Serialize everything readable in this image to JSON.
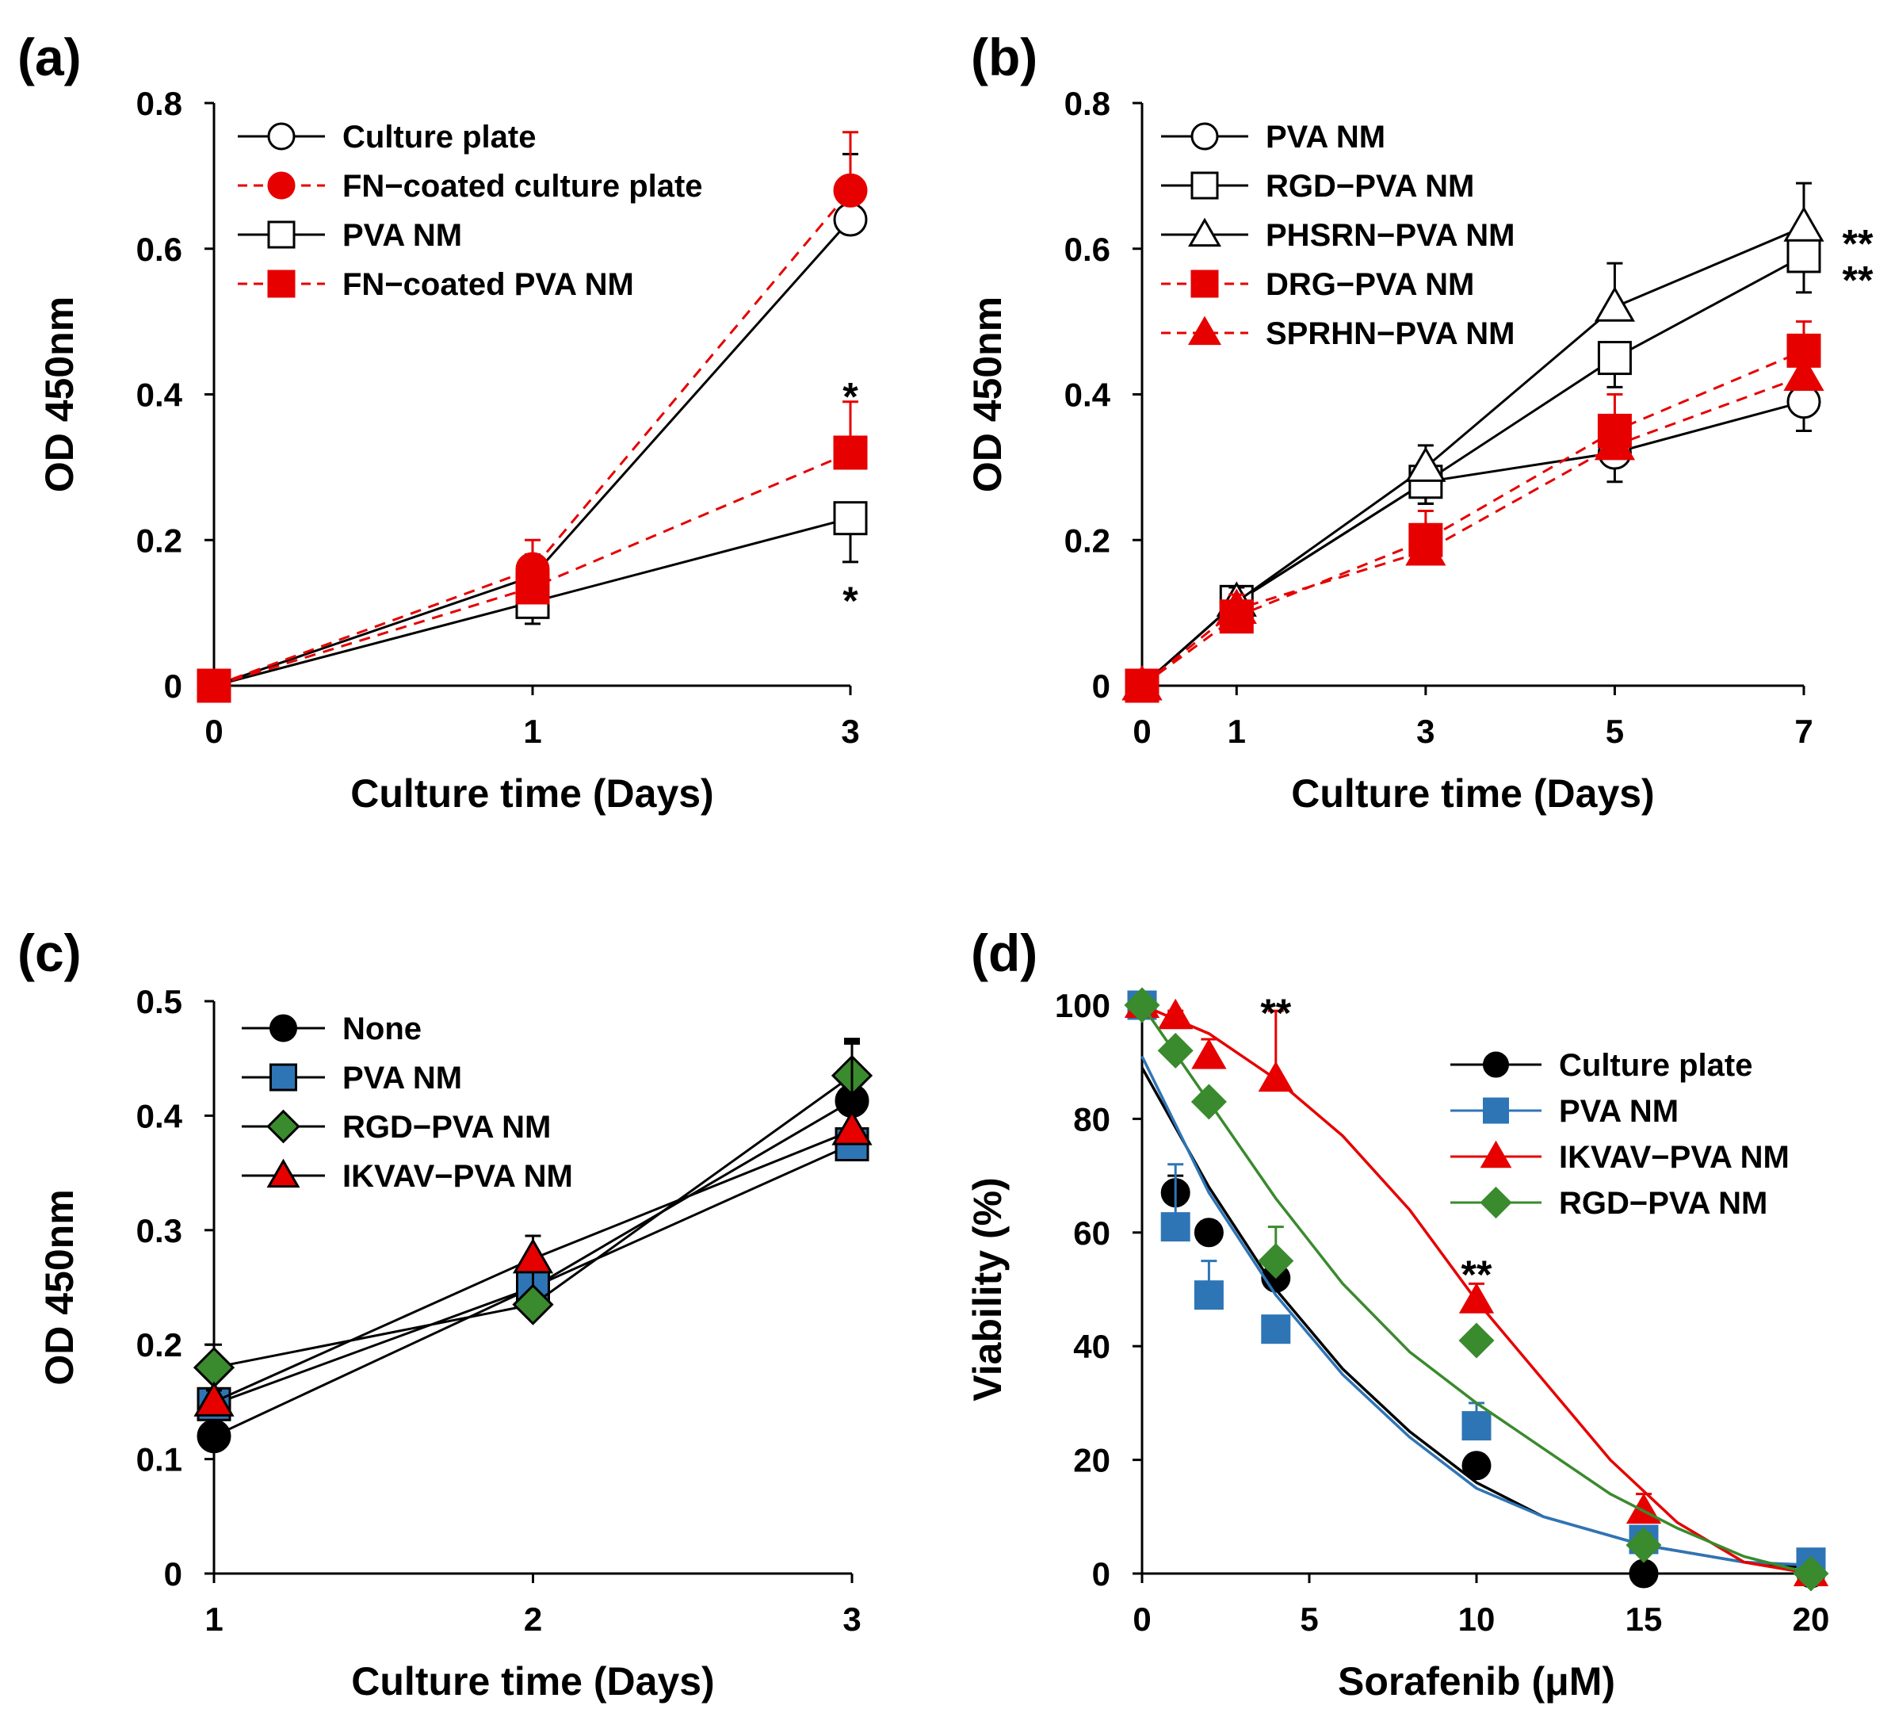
{
  "chart_data": [
    {
      "id": "a",
      "type": "line",
      "panel_label": "(a)",
      "xlabel": "Culture time (Days)",
      "ylabel": "OD 450nm",
      "categories": [
        "0",
        "1",
        "3"
      ],
      "ylim": [
        0,
        0.8
      ],
      "yticks": [
        "0",
        "0.2",
        "0.4",
        "0.6",
        "0.8"
      ],
      "legend_position": "top-left",
      "series": [
        {
          "name": "Culture plate",
          "marker": "circle",
          "fill": "#ffffff",
          "line": "#000000",
          "dash": false,
          "values": [
            0,
            0.15,
            0.64
          ],
          "errors": [
            0,
            0.03,
            0.09
          ]
        },
        {
          "name": "FN−coated culture plate",
          "marker": "circle",
          "fill": "#e60000",
          "line": "#e60000",
          "dash": true,
          "values": [
            0,
            0.16,
            0.68
          ],
          "errors": [
            0,
            0.04,
            0.08
          ]
        },
        {
          "name": "PVA NM",
          "marker": "square",
          "fill": "#ffffff",
          "line": "#000000",
          "dash": false,
          "values": [
            0,
            0.115,
            0.23
          ],
          "errors": [
            0,
            0.03,
            0.06
          ],
          "error_dir": "down"
        },
        {
          "name": "FN−coated PVA NM",
          "marker": "square",
          "fill": "#e60000",
          "line": "#e60000",
          "dash": true,
          "values": [
            0,
            0.135,
            0.32
          ],
          "errors": [
            0,
            0.02,
            0.07
          ]
        }
      ],
      "annotations": [
        {
          "text": "*",
          "x_index": 2,
          "y": 0.4
        },
        {
          "text": "*",
          "x_index": 2,
          "y": 0.12
        }
      ]
    },
    {
      "id": "b",
      "type": "line",
      "panel_label": "(b)",
      "xlabel": "Culture time (Days)",
      "ylabel": "OD 450nm",
      "x": [
        0,
        1,
        3,
        5,
        7
      ],
      "xticks": [
        "0",
        "1",
        "3",
        "5",
        "7"
      ],
      "xlim": [
        0,
        7
      ],
      "ylim": [
        0,
        0.8
      ],
      "yticks": [
        "0",
        "0.2",
        "0.4",
        "0.6",
        "0.8"
      ],
      "legend_position": "top-left",
      "series": [
        {
          "name": "PVA NM",
          "marker": "circle",
          "fill": "#ffffff",
          "line": "#000000",
          "dash": false,
          "values": [
            0,
            0.115,
            0.28,
            0.32,
            0.39
          ],
          "errors": [
            0,
            0.02,
            0.03,
            0.04,
            0.04
          ],
          "error_dir": "down"
        },
        {
          "name": "RGD−PVA NM",
          "marker": "square",
          "fill": "#ffffff",
          "line": "#000000",
          "dash": false,
          "values": [
            0,
            0.115,
            0.28,
            0.45,
            0.59
          ],
          "errors": [
            0,
            0.02,
            0.03,
            0.04,
            0.05
          ],
          "error_dir": "down"
        },
        {
          "name": "PHSRN−PVA NM",
          "marker": "triangle",
          "fill": "#ffffff",
          "line": "#000000",
          "dash": false,
          "values": [
            0,
            0.115,
            0.3,
            0.52,
            0.63
          ],
          "errors": [
            0,
            0.02,
            0.03,
            0.06,
            0.06
          ]
        },
        {
          "name": "DRG−PVA NM",
          "marker": "square",
          "fill": "#e60000",
          "line": "#e60000",
          "dash": true,
          "values": [
            0,
            0.095,
            0.2,
            0.35,
            0.46
          ],
          "errors": [
            0,
            0.02,
            0.04,
            0.05,
            0.04
          ]
        },
        {
          "name": "SPRHN−PVA NM",
          "marker": "triangle",
          "fill": "#e60000",
          "line": "#e60000",
          "dash": true,
          "values": [
            0,
            0.105,
            0.185,
            0.33,
            0.425
          ],
          "errors": [
            0,
            0.02,
            0.03,
            0.04,
            0.04
          ]
        }
      ],
      "annotations": [
        {
          "text": "**",
          "x_index": 4,
          "y": 0.61,
          "offset": "right"
        },
        {
          "text": "**",
          "x_index": 4,
          "y": 0.56,
          "offset": "right"
        }
      ]
    },
    {
      "id": "c",
      "type": "line",
      "panel_label": "(c)",
      "xlabel": "Culture time (Days)",
      "ylabel": "OD 450nm",
      "x": [
        1,
        2,
        3
      ],
      "xticks": [
        "1",
        "2",
        "3"
      ],
      "xlim": [
        1,
        3
      ],
      "ylim": [
        0,
        0.5
      ],
      "yticks": [
        "0",
        "0.1",
        "0.2",
        "0.3",
        "0.4",
        "0.5"
      ],
      "legend_position": "top-left",
      "series": [
        {
          "name": "None",
          "marker": "circle",
          "fill": "#000000",
          "line": "#000000",
          "dash": false,
          "values": [
            0.12,
            0.25,
            0.413
          ],
          "errors": [
            0.01,
            0.03,
            0.05
          ]
        },
        {
          "name": "PVA NM",
          "marker": "square",
          "fill": "#2e75b6",
          "line": "#000000",
          "dash": false,
          "values": [
            0.148,
            0.25,
            0.375
          ],
          "errors": [
            0.01,
            0.03,
            0.05
          ]
        },
        {
          "name": "RGD−PVA NM",
          "marker": "diamond",
          "fill": "#3a8a2e",
          "line": "#000000",
          "dash": false,
          "values": [
            0.18,
            0.235,
            0.435
          ],
          "errors": [
            0.02,
            0.03,
            0.03
          ]
        },
        {
          "name": "IKVAV−PVA NM",
          "marker": "triangle",
          "fill": "#e60000",
          "line": "#000000",
          "dash": false,
          "values": [
            0.15,
            0.275,
            0.387
          ],
          "errors": [
            0.01,
            0.02,
            0.08
          ]
        }
      ]
    },
    {
      "id": "d",
      "type": "scatter",
      "panel_label": "(d)",
      "xlabel": "Sorafenib (μM)",
      "ylabel": "Viability (%)",
      "xlim": [
        0,
        20
      ],
      "xticks": [
        "0",
        "5",
        "10",
        "15",
        "20"
      ],
      "ylim": [
        0,
        100
      ],
      "yticks": [
        "0",
        "20",
        "40",
        "60",
        "80",
        "100"
      ],
      "legend_position": "top-right",
      "x": [
        0,
        1,
        2,
        4,
        10,
        15,
        20
      ],
      "series": [
        {
          "name": "Culture plate",
          "marker": "circle",
          "fill": "#000000",
          "line": "#000000",
          "values": [
            100,
            67,
            60,
            52,
            19,
            0,
            0
          ],
          "errors": [
            0,
            3,
            2,
            4,
            2,
            1,
            0
          ],
          "fit": [
            [
              0,
              89
            ],
            [
              2,
              68
            ],
            [
              4,
              50
            ],
            [
              6,
              36
            ],
            [
              8,
              25
            ],
            [
              10,
              16
            ],
            [
              12,
              10
            ],
            [
              15,
              5
            ],
            [
              18,
              2
            ],
            [
              20,
              1
            ]
          ]
        },
        {
          "name": "PVA NM",
          "marker": "square",
          "fill": "#2e75b6",
          "line": "#2e75b6",
          "values": [
            100,
            61,
            49,
            43,
            26,
            6,
            2
          ],
          "errors": [
            0,
            11,
            6,
            2,
            4,
            2,
            0
          ],
          "fit": [
            [
              0,
              91
            ],
            [
              2,
              67
            ],
            [
              4,
              49
            ],
            [
              6,
              35
            ],
            [
              8,
              24
            ],
            [
              10,
              15
            ],
            [
              12,
              10
            ],
            [
              15,
              5
            ],
            [
              18,
              2
            ],
            [
              20,
              1.5
            ]
          ]
        },
        {
          "name": "IKVAV−PVA NM",
          "marker": "triangle",
          "fill": "#e60000",
          "line": "#e60000",
          "values": [
            100,
            98,
            91,
            87,
            48,
            11,
            0
          ],
          "errors": [
            0,
            1,
            3,
            12,
            3,
            3,
            0
          ],
          "fit": [
            [
              0,
              100
            ],
            [
              2,
              95
            ],
            [
              4,
              87
            ],
            [
              6,
              77
            ],
            [
              8,
              64
            ],
            [
              10,
              48
            ],
            [
              12,
              34
            ],
            [
              14,
              20
            ],
            [
              16,
              9
            ],
            [
              18,
              2
            ],
            [
              20,
              0
            ]
          ]
        },
        {
          "name": "RGD−PVA NM",
          "marker": "diamond",
          "fill": "#3a8a2e",
          "line": "#3a8a2e",
          "values": [
            100,
            92,
            83,
            55,
            41,
            5,
            0
          ],
          "errors": [
            0,
            1,
            1,
            6,
            1,
            2,
            0
          ],
          "fit": [
            [
              0,
              100
            ],
            [
              2,
              83
            ],
            [
              4,
              66
            ],
            [
              6,
              51
            ],
            [
              8,
              39
            ],
            [
              10,
              30
            ],
            [
              12,
              22
            ],
            [
              14,
              14
            ],
            [
              16,
              8
            ],
            [
              18,
              3
            ],
            [
              20,
              0
            ]
          ]
        }
      ],
      "annotations": [
        {
          "text": "**",
          "x": 4,
          "y": 99
        },
        {
          "text": "**",
          "x": 10,
          "y": 53
        }
      ]
    }
  ]
}
